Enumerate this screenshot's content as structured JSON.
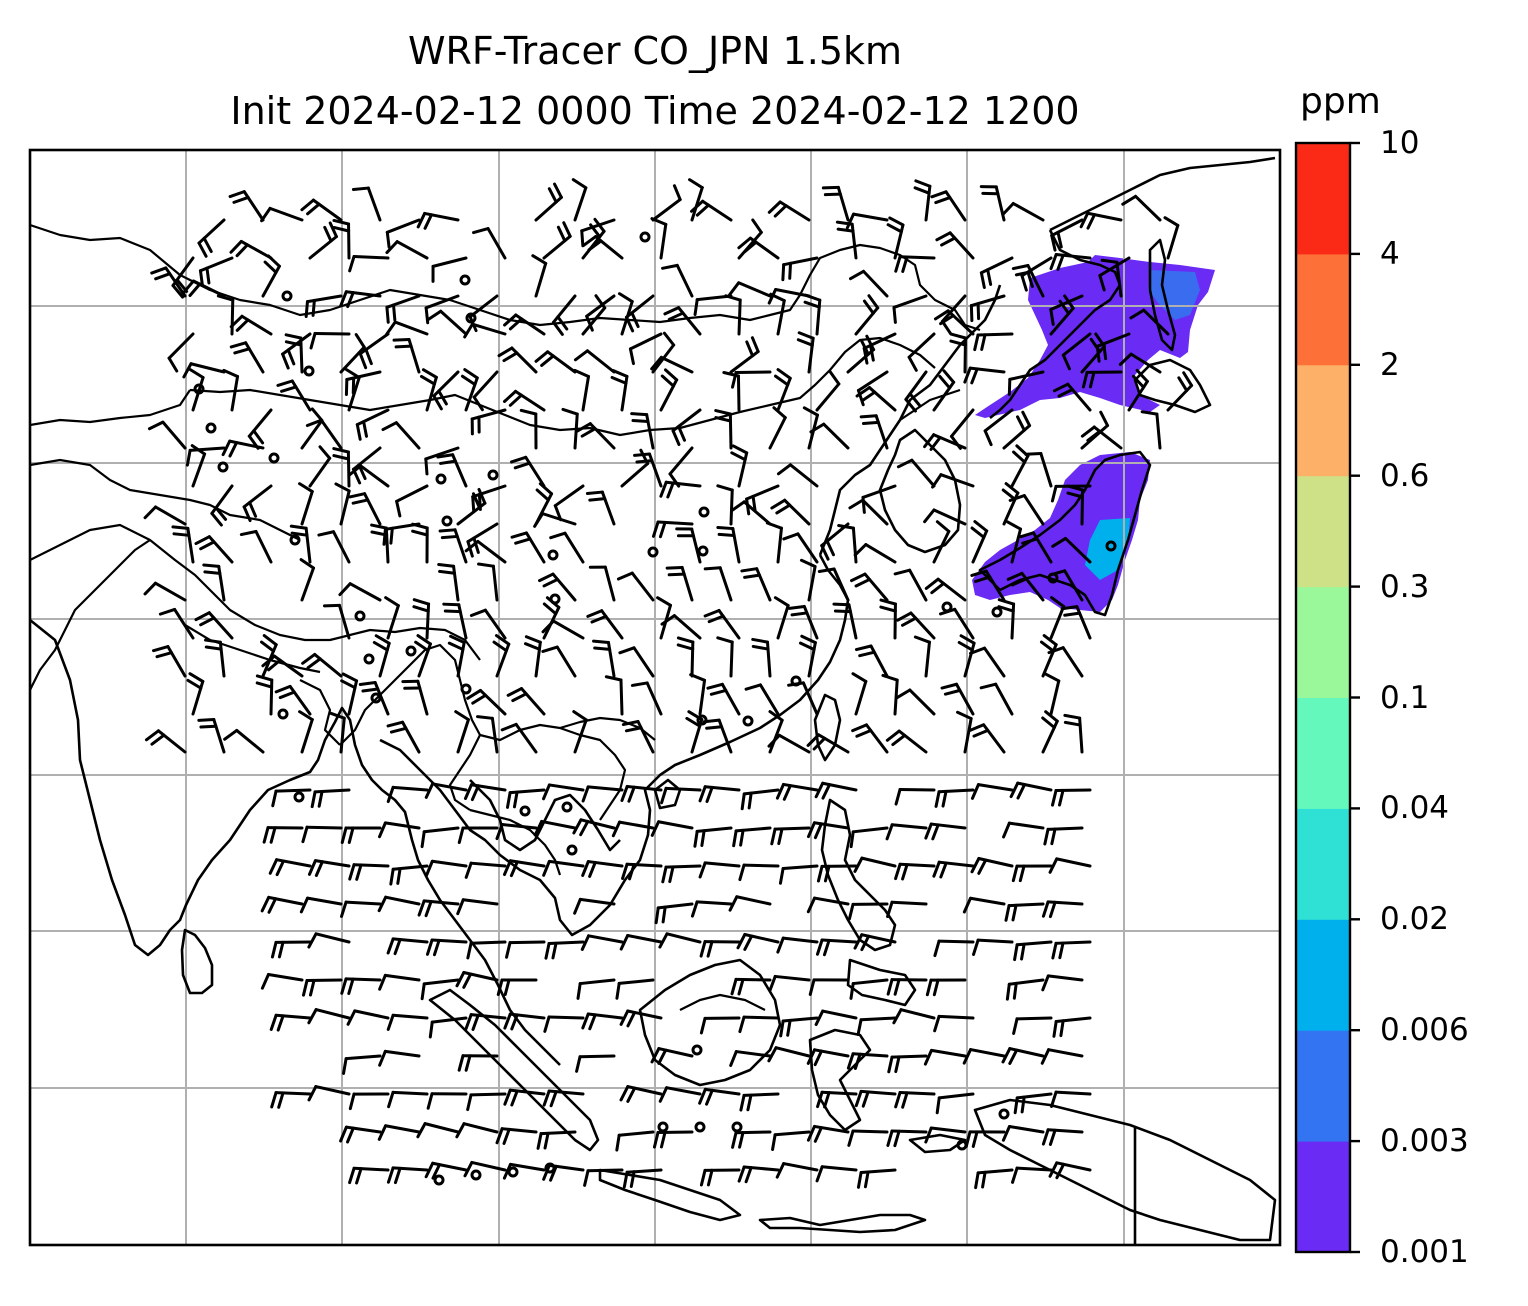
{
  "title_line1": "WRF-Tracer CO_JPN 1.5km",
  "title_line2": "Init 2024-02-12 0000 Time 2024-02-12 1200",
  "colorbar": {
    "units": "ppm",
    "levels": [
      "0.001",
      "0.003",
      "0.006",
      "0.02",
      "0.04",
      "0.1",
      "0.3",
      "0.6",
      "2",
      "4",
      "10"
    ],
    "colors": [
      "#6a2bf5",
      "#3374f2",
      "#00b0ec",
      "#2fe0d4",
      "#65f8bd",
      "#9bf89a",
      "#cfe187",
      "#fdb068",
      "#fd7139",
      "#fb2a16"
    ]
  },
  "plume_colors": {
    "main": "#6a2bf5",
    "mid": "#3a6cf0",
    "high": "#00b0ec"
  },
  "gridline_color": "#b0b0b0"
}
